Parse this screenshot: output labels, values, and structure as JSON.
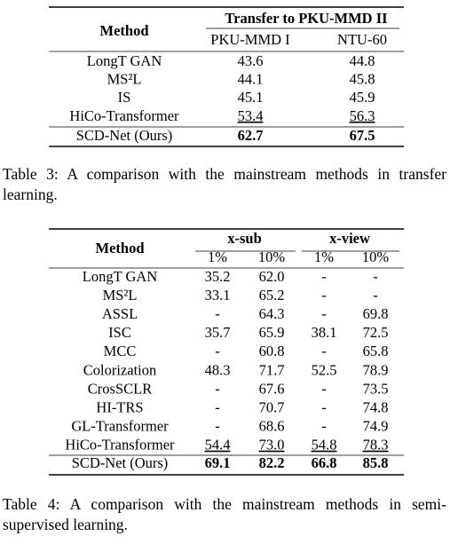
{
  "tables": [
    {
      "headers": {
        "method": "Method",
        "groups": [
          "Transfer to PKU-MMD II"
        ],
        "columns": [
          "PKU-MMD I",
          "NTU-60"
        ]
      },
      "rows": [
        {
          "method": "LongT GAN",
          "values": [
            "43.6",
            "44.8"
          ]
        },
        {
          "method": "MS²L",
          "values": [
            "44.1",
            "45.8"
          ]
        },
        {
          "method": "IS",
          "values": [
            "45.1",
            "45.9"
          ]
        },
        {
          "method": "HiCo-Transformer",
          "values": [
            "53.4",
            "56.3"
          ],
          "style": "underline"
        },
        {
          "method": "SCD-Net (Ours)",
          "values": [
            "62.7",
            "67.5"
          ],
          "style": "bold"
        }
      ],
      "caption": "Table 3: A comparison with the mainstream methods in transfer learning."
    },
    {
      "headers": {
        "method": "Method",
        "groups": [
          "x-sub",
          "x-view"
        ],
        "columns": [
          "1%",
          "10%",
          "1%",
          "10%"
        ]
      },
      "rows": [
        {
          "method": "LongT GAN",
          "values": [
            "35.2",
            "62.0",
            "-",
            "-"
          ]
        },
        {
          "method": "MS²L",
          "values": [
            "33.1",
            "65.2",
            "-",
            "-"
          ]
        },
        {
          "method": "ASSL",
          "values": [
            "-",
            "64.3",
            "-",
            "69.8"
          ]
        },
        {
          "method": "ISC",
          "values": [
            "35.7",
            "65.9",
            "38.1",
            "72.5"
          ]
        },
        {
          "method": "MCC",
          "values": [
            "-",
            "60.8",
            "-",
            "65.8"
          ]
        },
        {
          "method": "Colorization",
          "values": [
            "48.3",
            "71.7",
            "52.5",
            "78.9"
          ]
        },
        {
          "method": "CrosSCLR",
          "values": [
            "-",
            "67.6",
            "-",
            "73.5"
          ]
        },
        {
          "method": "HI-TRS",
          "values": [
            "-",
            "70.7",
            "-",
            "74.8"
          ]
        },
        {
          "method": "GL-Transformer",
          "values": [
            "-",
            "68.6",
            "-",
            "74.9"
          ]
        },
        {
          "method": "HiCo-Transformer",
          "values": [
            "54.4",
            "73.0",
            "54.8",
            "78.3"
          ],
          "style": "underline"
        },
        {
          "method": "SCD-Net (Ours)",
          "values": [
            "69.1",
            "82.2",
            "66.8",
            "85.8"
          ],
          "style": "bold"
        }
      ],
      "caption": "Table 4: A comparison with the mainstream methods in semi-supervised learning."
    }
  ]
}
